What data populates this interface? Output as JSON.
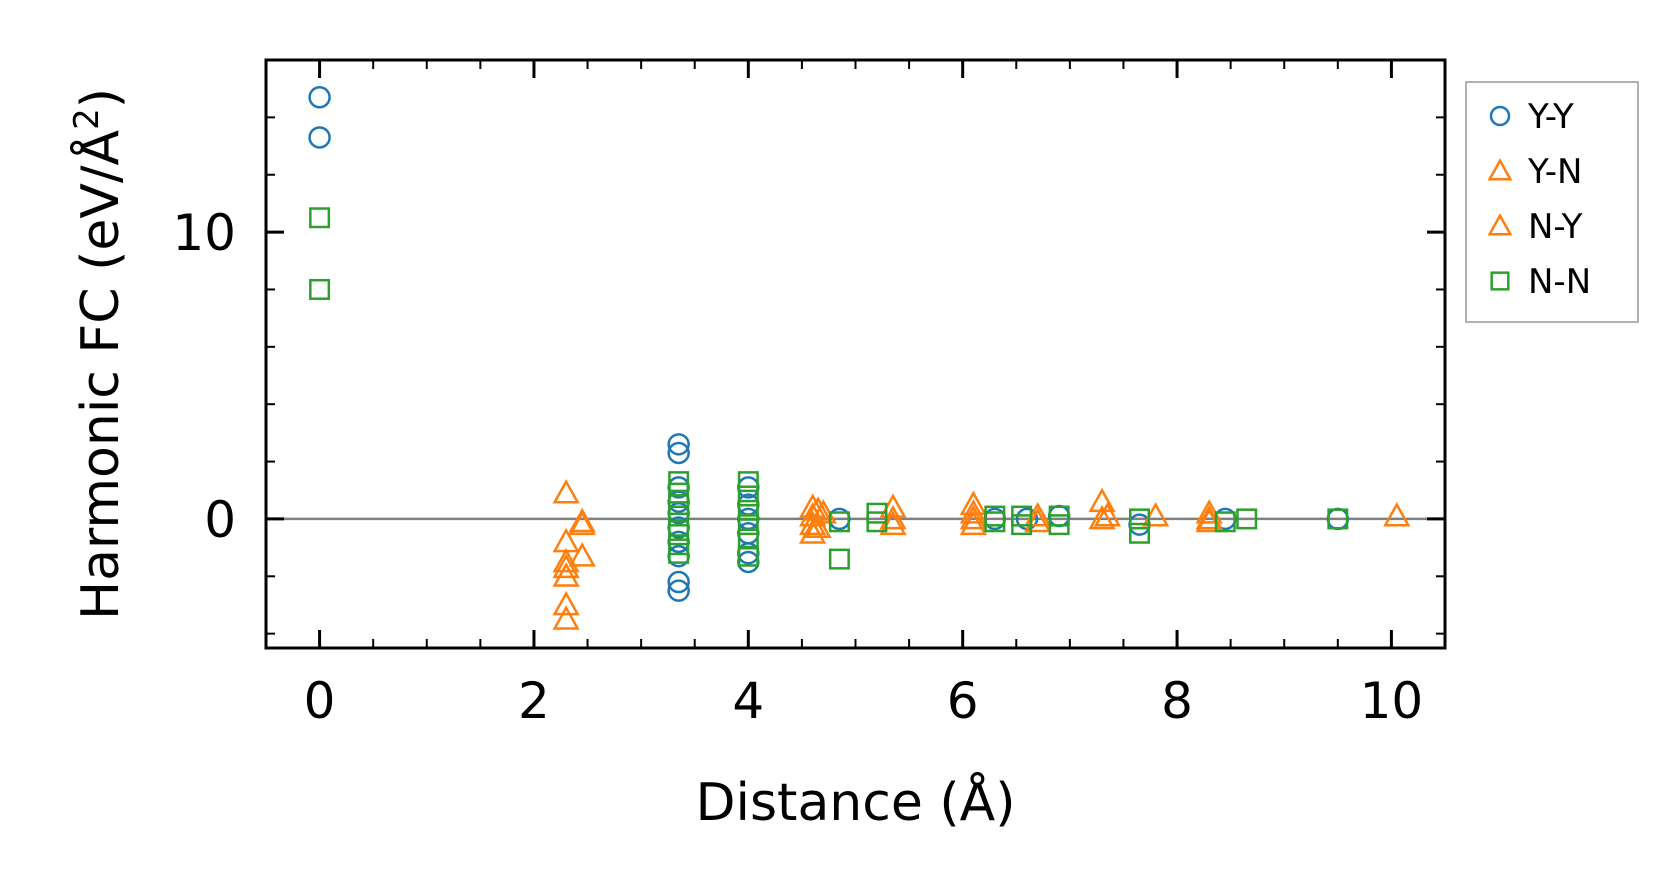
{
  "chart_data": {
    "type": "scatter",
    "title": "",
    "xlabel": "Distance (Å)",
    "ylabel_parts": {
      "prefix": "Harmonic FC (eV/Å",
      "superscript": "2",
      "suffix": ")"
    },
    "xlim": [
      -0.5,
      10.5
    ],
    "ylim": [
      -4.5,
      16
    ],
    "xticks": [
      0,
      2,
      4,
      6,
      8,
      10
    ],
    "xtick_labels": [
      "0",
      "2",
      "4",
      "6",
      "8",
      "10"
    ],
    "yticks": [
      0,
      10
    ],
    "ytick_labels": [
      "0",
      "10"
    ],
    "zero_line": true,
    "grid": false,
    "legend_position": "outside-right-top",
    "series": [
      {
        "name": "Y-Y",
        "marker": "circle",
        "color": "#1f77b4",
        "points": [
          [
            0,
            14.7
          ],
          [
            0,
            13.3
          ],
          [
            3.35,
            2.6
          ],
          [
            3.35,
            2.3
          ],
          [
            3.35,
            1.1
          ],
          [
            3.35,
            0.6
          ],
          [
            3.35,
            0.2
          ],
          [
            3.35,
            -0.3
          ],
          [
            3.35,
            -0.8
          ],
          [
            3.35,
            -1.3
          ],
          [
            3.35,
            -2.2
          ],
          [
            3.35,
            -2.5
          ],
          [
            4.0,
            1.1
          ],
          [
            4.0,
            0.5
          ],
          [
            4.0,
            0.0
          ],
          [
            4.0,
            -0.5
          ],
          [
            4.0,
            -1.2
          ],
          [
            4.0,
            -1.5
          ],
          [
            4.85,
            0.0
          ],
          [
            6.3,
            0.0
          ],
          [
            6.6,
            0.0
          ],
          [
            6.9,
            0.1
          ],
          [
            7.65,
            -0.2
          ],
          [
            8.45,
            0.0
          ],
          [
            9.5,
            0.0
          ]
        ]
      },
      {
        "name": "Y-N",
        "marker": "triangle",
        "color": "#ff7f0e",
        "points": [
          [
            2.3,
            0.9
          ],
          [
            2.3,
            -0.8
          ],
          [
            2.3,
            -1.5
          ],
          [
            2.3,
            -3.0
          ],
          [
            2.45,
            -1.3
          ],
          [
            2.45,
            -0.1
          ],
          [
            4.6,
            0.4
          ],
          [
            4.6,
            0.1
          ],
          [
            4.6,
            -0.2
          ],
          [
            4.6,
            -0.5
          ],
          [
            4.7,
            0.2
          ],
          [
            5.35,
            0.4
          ],
          [
            5.35,
            -0.2
          ],
          [
            6.1,
            0.5
          ],
          [
            6.1,
            0.2
          ],
          [
            6.1,
            -0.2
          ],
          [
            6.7,
            0.1
          ],
          [
            6.7,
            -0.1
          ],
          [
            7.3,
            0.6
          ],
          [
            7.3,
            0.0
          ],
          [
            7.8,
            0.1
          ],
          [
            8.3,
            0.2
          ],
          [
            8.3,
            -0.1
          ],
          [
            10.05,
            0.1
          ]
        ]
      },
      {
        "name": "N-Y",
        "marker": "triangle",
        "color": "#ff7f0e",
        "points": [
          [
            2.3,
            -1.7
          ],
          [
            2.3,
            -2.0
          ],
          [
            2.3,
            -3.5
          ],
          [
            2.45,
            -0.2
          ],
          [
            4.65,
            0.3
          ],
          [
            4.65,
            -0.3
          ],
          [
            5.35,
            0.0
          ],
          [
            6.1,
            0.0
          ],
          [
            7.35,
            0.1
          ],
          [
            8.3,
            0.0
          ]
        ]
      },
      {
        "name": "N-N",
        "marker": "square",
        "color": "#2ca02c",
        "points": [
          [
            0,
            10.5
          ],
          [
            0,
            8.0
          ],
          [
            3.35,
            1.3
          ],
          [
            3.35,
            0.9
          ],
          [
            3.35,
            0.5
          ],
          [
            3.35,
            0.1
          ],
          [
            3.35,
            -0.4
          ],
          [
            3.35,
            -0.9
          ],
          [
            3.35,
            -1.2
          ],
          [
            4.0,
            1.3
          ],
          [
            4.0,
            0.8
          ],
          [
            4.0,
            0.3
          ],
          [
            4.0,
            -0.2
          ],
          [
            4.0,
            -0.7
          ],
          [
            4.0,
            -1.3
          ],
          [
            4.85,
            -1.4
          ],
          [
            4.85,
            -0.1
          ],
          [
            5.2,
            0.2
          ],
          [
            5.2,
            -0.1
          ],
          [
            6.3,
            0.1
          ],
          [
            6.3,
            -0.1
          ],
          [
            6.55,
            0.1
          ],
          [
            6.55,
            -0.2
          ],
          [
            6.9,
            0.1
          ],
          [
            6.9,
            -0.2
          ],
          [
            7.65,
            0.0
          ],
          [
            7.65,
            -0.5
          ],
          [
            8.45,
            -0.1
          ],
          [
            8.65,
            0.0
          ],
          [
            9.5,
            0.0
          ]
        ]
      }
    ]
  }
}
